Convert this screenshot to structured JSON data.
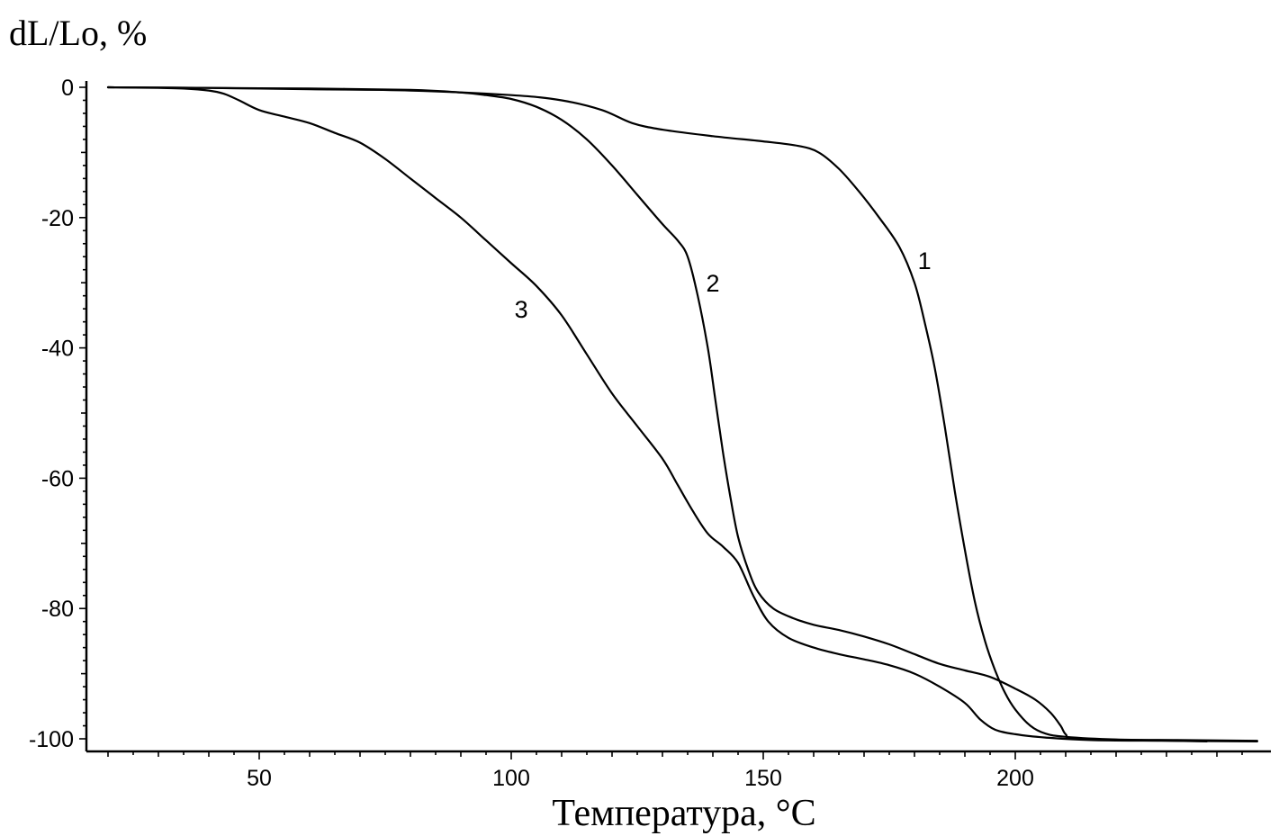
{
  "chart_data": {
    "type": "line",
    "title": "",
    "xlabel": "Температура, °C",
    "ylabel": "dL/Lo, %",
    "xlim": [
      18,
      248
    ],
    "ylim": [
      -102,
      1
    ],
    "x_ticks": [
      50,
      100,
      150,
      200
    ],
    "y_ticks": [
      0,
      -20,
      -40,
      -60,
      -80,
      -100
    ],
    "grid": false,
    "legend": "none",
    "series": [
      {
        "name": "1",
        "label_at": [
          182,
          -26.5
        ],
        "points": [
          [
            20,
            0
          ],
          [
            40,
            -0.1
          ],
          [
            60,
            -0.3
          ],
          [
            80,
            -0.5
          ],
          [
            100,
            -1.2
          ],
          [
            110,
            -2
          ],
          [
            118,
            -3.5
          ],
          [
            124,
            -5.5
          ],
          [
            130,
            -6.5
          ],
          [
            140,
            -7.5
          ],
          [
            150,
            -8.3
          ],
          [
            157,
            -9
          ],
          [
            161,
            -10
          ],
          [
            165,
            -12.5
          ],
          [
            169,
            -16
          ],
          [
            173,
            -20
          ],
          [
            177,
            -24.5
          ],
          [
            180,
            -30
          ],
          [
            182,
            -36
          ],
          [
            184,
            -43
          ],
          [
            186,
            -52
          ],
          [
            188,
            -62
          ],
          [
            190,
            -71
          ],
          [
            192,
            -79
          ],
          [
            194,
            -85
          ],
          [
            196,
            -89.5
          ],
          [
            198,
            -93
          ],
          [
            200,
            -95.5
          ],
          [
            203,
            -98
          ],
          [
            206,
            -99.2
          ],
          [
            210,
            -99.7
          ],
          [
            220,
            -100.1
          ],
          [
            232,
            -100.2
          ],
          [
            248,
            -100.3
          ]
        ]
      },
      {
        "name": "2",
        "label_at": [
          140,
          -30
        ],
        "points": [
          [
            20,
            0
          ],
          [
            40,
            -0.1
          ],
          [
            60,
            -0.2
          ],
          [
            80,
            -0.4
          ],
          [
            90,
            -0.8
          ],
          [
            95,
            -1.2
          ],
          [
            100,
            -1.8
          ],
          [
            105,
            -3
          ],
          [
            110,
            -5
          ],
          [
            115,
            -8
          ],
          [
            120,
            -12
          ],
          [
            125,
            -16.5
          ],
          [
            130,
            -21
          ],
          [
            133,
            -23.5
          ],
          [
            135,
            -26
          ],
          [
            137,
            -32
          ],
          [
            139,
            -40
          ],
          [
            140.5,
            -48
          ],
          [
            142,
            -56
          ],
          [
            143.5,
            -63
          ],
          [
            145,
            -69
          ],
          [
            147,
            -74
          ],
          [
            149,
            -77.5
          ],
          [
            152,
            -80
          ],
          [
            156,
            -81.5
          ],
          [
            160,
            -82.5
          ],
          [
            165,
            -83.3
          ],
          [
            170,
            -84.3
          ],
          [
            175,
            -85.5
          ],
          [
            180,
            -87
          ],
          [
            185,
            -88.5
          ],
          [
            190,
            -89.5
          ],
          [
            195,
            -90.5
          ],
          [
            200,
            -92.3
          ],
          [
            204,
            -94
          ],
          [
            207,
            -96
          ],
          [
            209,
            -98
          ],
          [
            210,
            -99.3
          ],
          [
            212,
            -100
          ],
          [
            225,
            -100.2
          ],
          [
            238,
            -100.4
          ]
        ]
      },
      {
        "name": "3",
        "label_at": [
          102,
          -34
        ],
        "points": [
          [
            20,
            0
          ],
          [
            30,
            -0.1
          ],
          [
            35,
            -0.2
          ],
          [
            40,
            -0.5
          ],
          [
            43,
            -1
          ],
          [
            46,
            -2
          ],
          [
            50,
            -3.5
          ],
          [
            55,
            -4.5
          ],
          [
            60,
            -5.5
          ],
          [
            65,
            -7
          ],
          [
            70,
            -8.5
          ],
          [
            75,
            -11
          ],
          [
            80,
            -14
          ],
          [
            85,
            -17
          ],
          [
            90,
            -20
          ],
          [
            95,
            -23.5
          ],
          [
            100,
            -27
          ],
          [
            105,
            -30.5
          ],
          [
            110,
            -35
          ],
          [
            115,
            -41
          ],
          [
            120,
            -47
          ],
          [
            125,
            -52
          ],
          [
            130,
            -57
          ],
          [
            133,
            -61
          ],
          [
            136,
            -65
          ],
          [
            139,
            -68.5
          ],
          [
            142,
            -70.5
          ],
          [
            145,
            -73
          ],
          [
            148,
            -78
          ],
          [
            151,
            -82
          ],
          [
            155,
            -84.5
          ],
          [
            160,
            -86
          ],
          [
            165,
            -87
          ],
          [
            170,
            -87.8
          ],
          [
            175,
            -88.7
          ],
          [
            180,
            -90
          ],
          [
            185,
            -92
          ],
          [
            190,
            -94.5
          ],
          [
            193,
            -97
          ],
          [
            196,
            -98.6
          ],
          [
            200,
            -99.3
          ],
          [
            206,
            -99.8
          ],
          [
            215,
            -100.2
          ],
          [
            230,
            -100.3
          ],
          [
            248,
            -100.4
          ]
        ]
      }
    ]
  }
}
